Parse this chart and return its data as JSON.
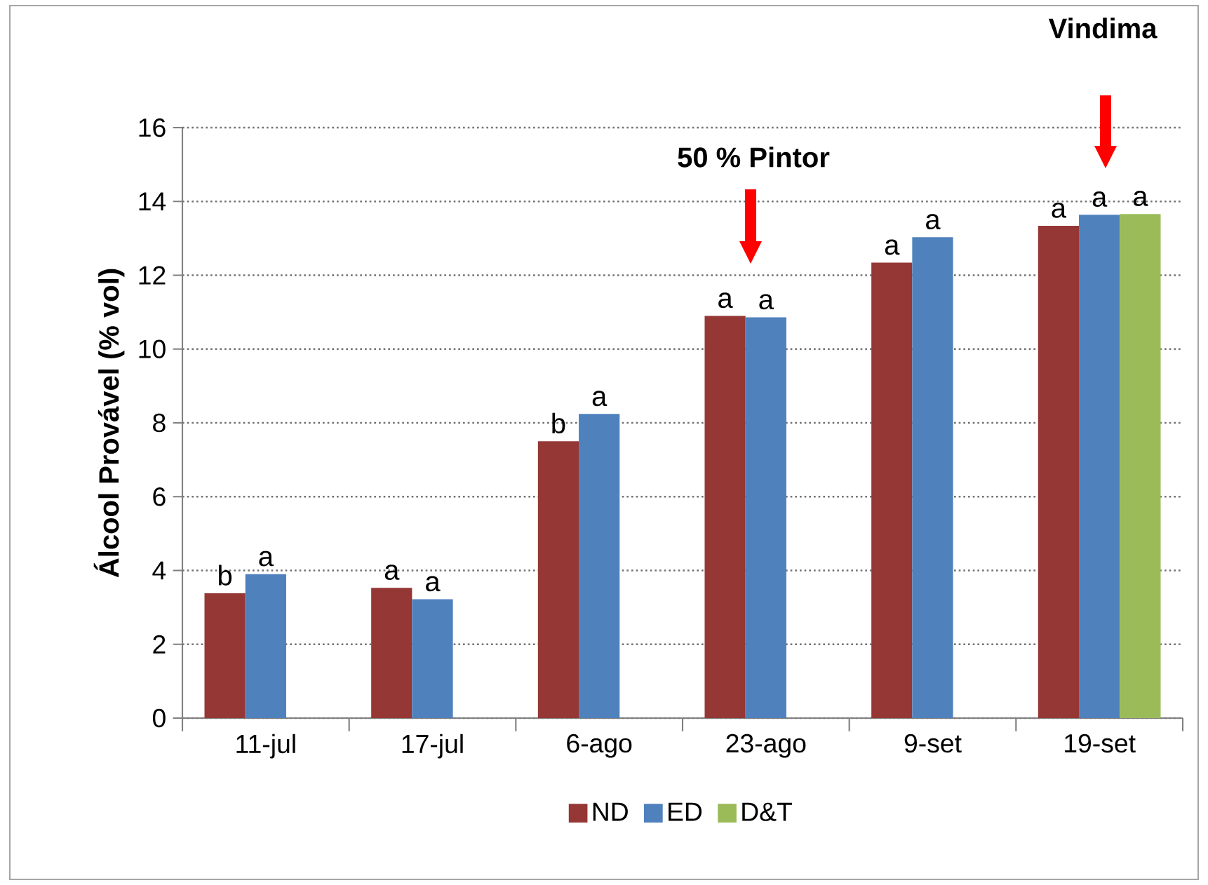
{
  "chart_data": {
    "type": "bar",
    "ylabel": "Álcool Provável (% vol)",
    "categories": [
      "11-jul",
      "17-jul",
      "6-ago",
      "23-ago",
      "9-set",
      "19-set"
    ],
    "series": [
      {
        "name": "ND",
        "color": "#953735",
        "values": [
          3.38,
          3.53,
          7.5,
          10.9,
          12.34,
          13.34
        ],
        "value_labels": [
          "b",
          "a",
          "b",
          "a",
          "a",
          "a"
        ]
      },
      {
        "name": "ED",
        "color": "#4f81bd",
        "values": [
          3.9,
          3.22,
          8.24,
          10.86,
          13.03,
          13.64
        ],
        "value_labels": [
          "a",
          "a",
          "a",
          "a",
          "a",
          "a"
        ]
      },
      {
        "name": "D&T",
        "color": "#9bbb59",
        "values": [
          null,
          null,
          null,
          null,
          null,
          13.66
        ],
        "value_labels": [
          null,
          null,
          null,
          null,
          null,
          "a"
        ]
      }
    ],
    "annotations": [
      "50 % Pintor",
      "Vindima"
    ],
    "ylim": [
      0,
      16
    ],
    "yticks": [
      0,
      2,
      4,
      6,
      8,
      10,
      12,
      14,
      16
    ],
    "grid": "y",
    "legend": "bottom"
  }
}
